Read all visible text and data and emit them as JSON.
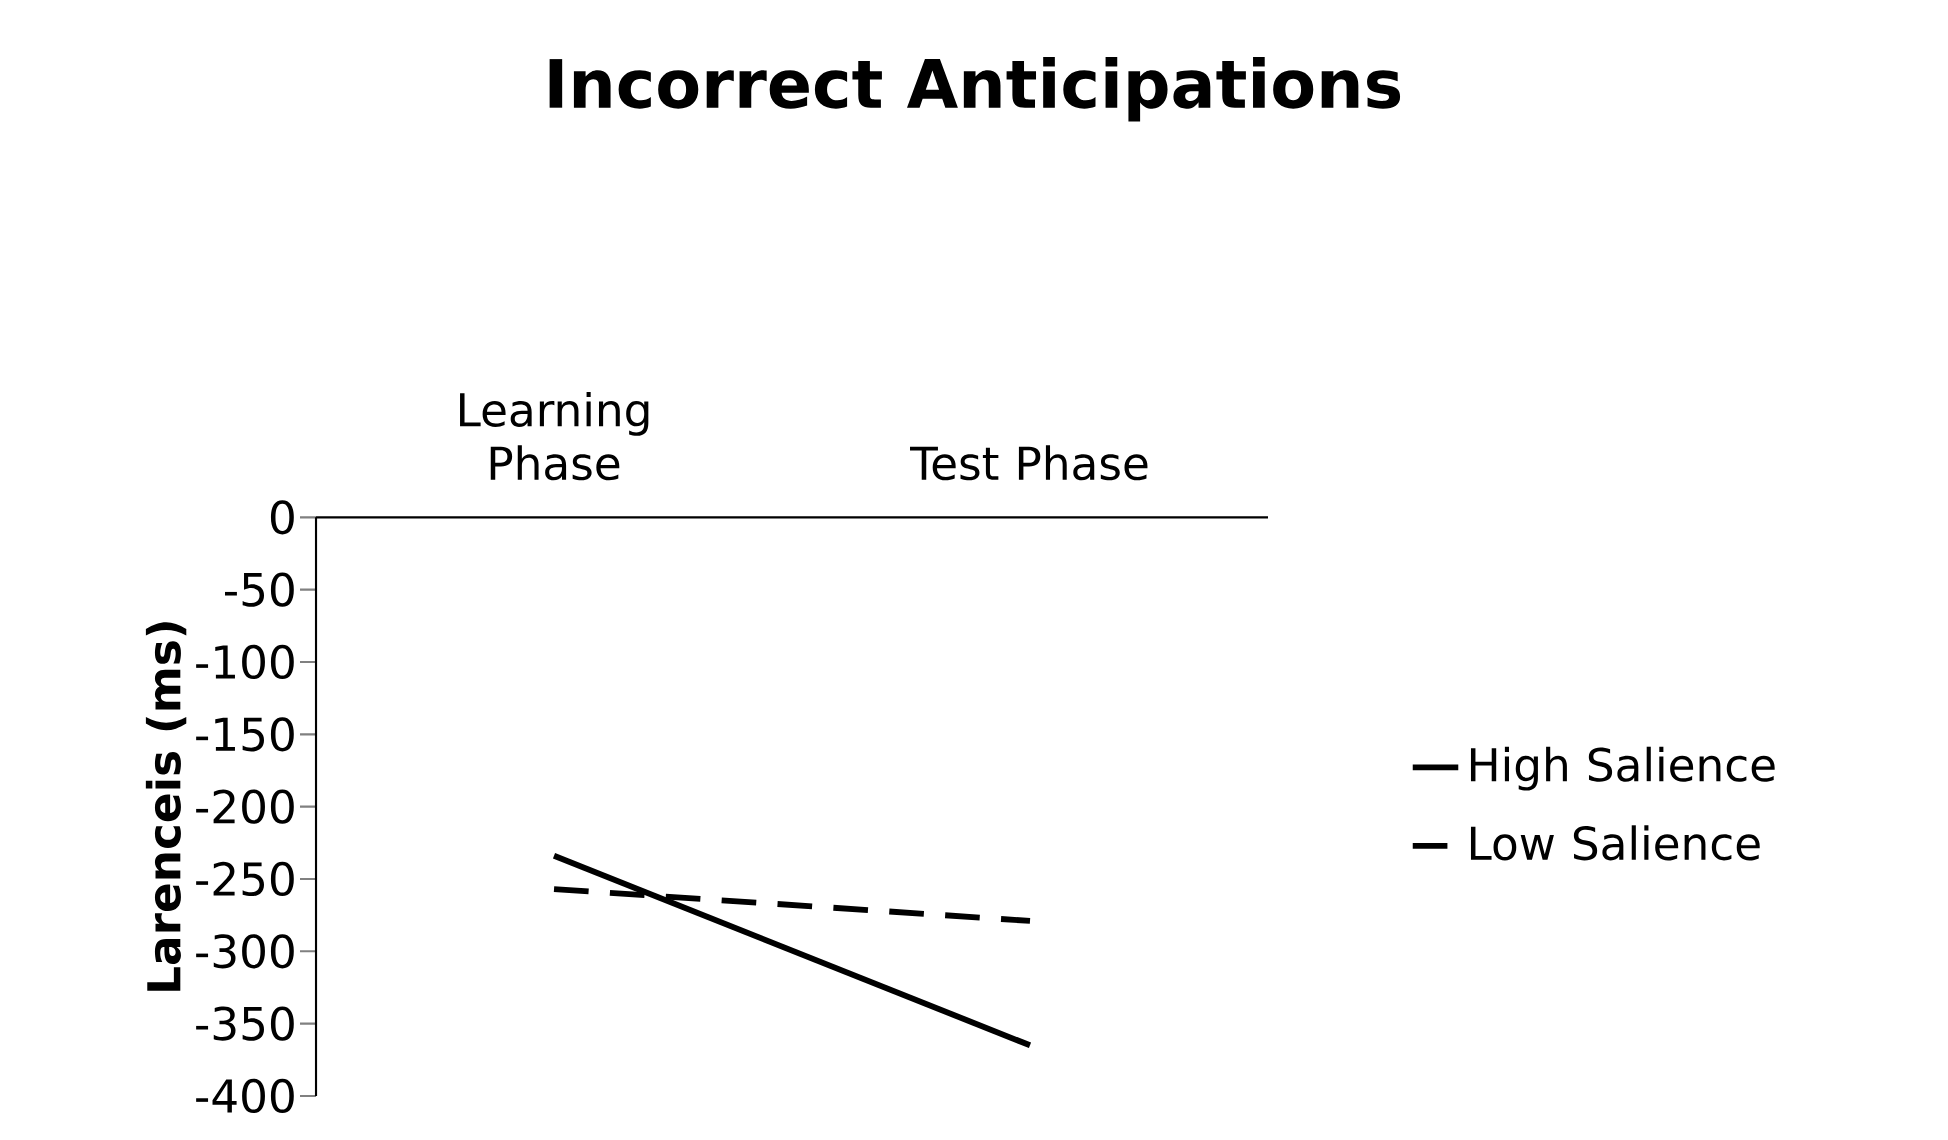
{
  "chart_data": {
    "type": "line",
    "title": "Incorrect Anticipations",
    "ylabel": "Larenceis (ms)",
    "categories": [
      "Learning Phase",
      "Test Phase"
    ],
    "series": [
      {
        "name": "High Salience",
        "color": "#000000",
        "line_style": "solid",
        "values": [
          -234,
          -365
        ]
      },
      {
        "name": "Low Salience",
        "color": "#000000",
        "line_style": "dashed",
        "values": [
          -257,
          -279
        ]
      }
    ],
    "ylim": [
      -400,
      0
    ],
    "yticks": [
      -400,
      -350,
      -300,
      -250,
      -200,
      -150,
      -100,
      -50,
      0
    ],
    "grid": false,
    "legend": "right",
    "marker": "none"
  }
}
